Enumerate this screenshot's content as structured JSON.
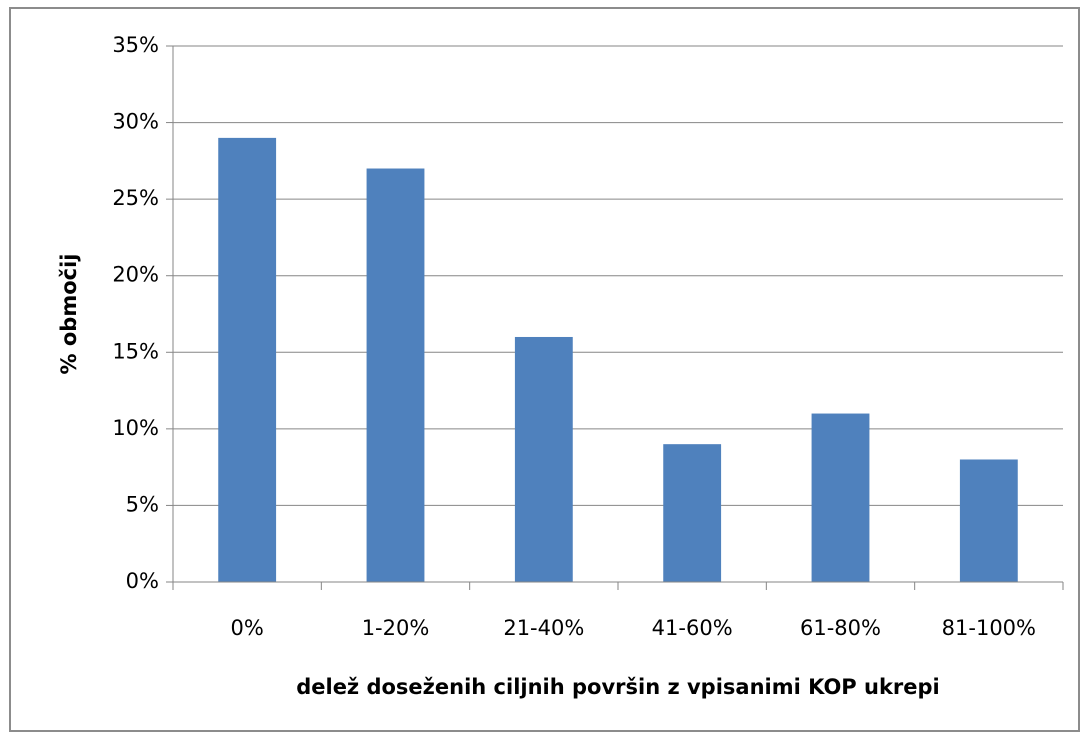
{
  "chart_data": {
    "type": "bar",
    "xlabel": "delež doseženih ciljnih površin z vpisanimi KOP ukrepi",
    "ylabel": "% območij",
    "categories": [
      "0%",
      "1-20%",
      "21-40%",
      "41-60%",
      "61-80%",
      "81-100%"
    ],
    "values": [
      29,
      27,
      16,
      9,
      11,
      8
    ],
    "color": "#4f81bd",
    "ylim": [
      0,
      35
    ],
    "yticks": [
      {
        "value": 0,
        "label": "0%"
      },
      {
        "value": 5,
        "label": "5%"
      },
      {
        "value": 10,
        "label": "10%"
      },
      {
        "value": 15,
        "label": "15%"
      },
      {
        "value": 20,
        "label": "20%"
      },
      {
        "value": 25,
        "label": "25%"
      },
      {
        "value": 30,
        "label": "30%"
      },
      {
        "value": 35,
        "label": "35%"
      }
    ],
    "grid": true
  }
}
